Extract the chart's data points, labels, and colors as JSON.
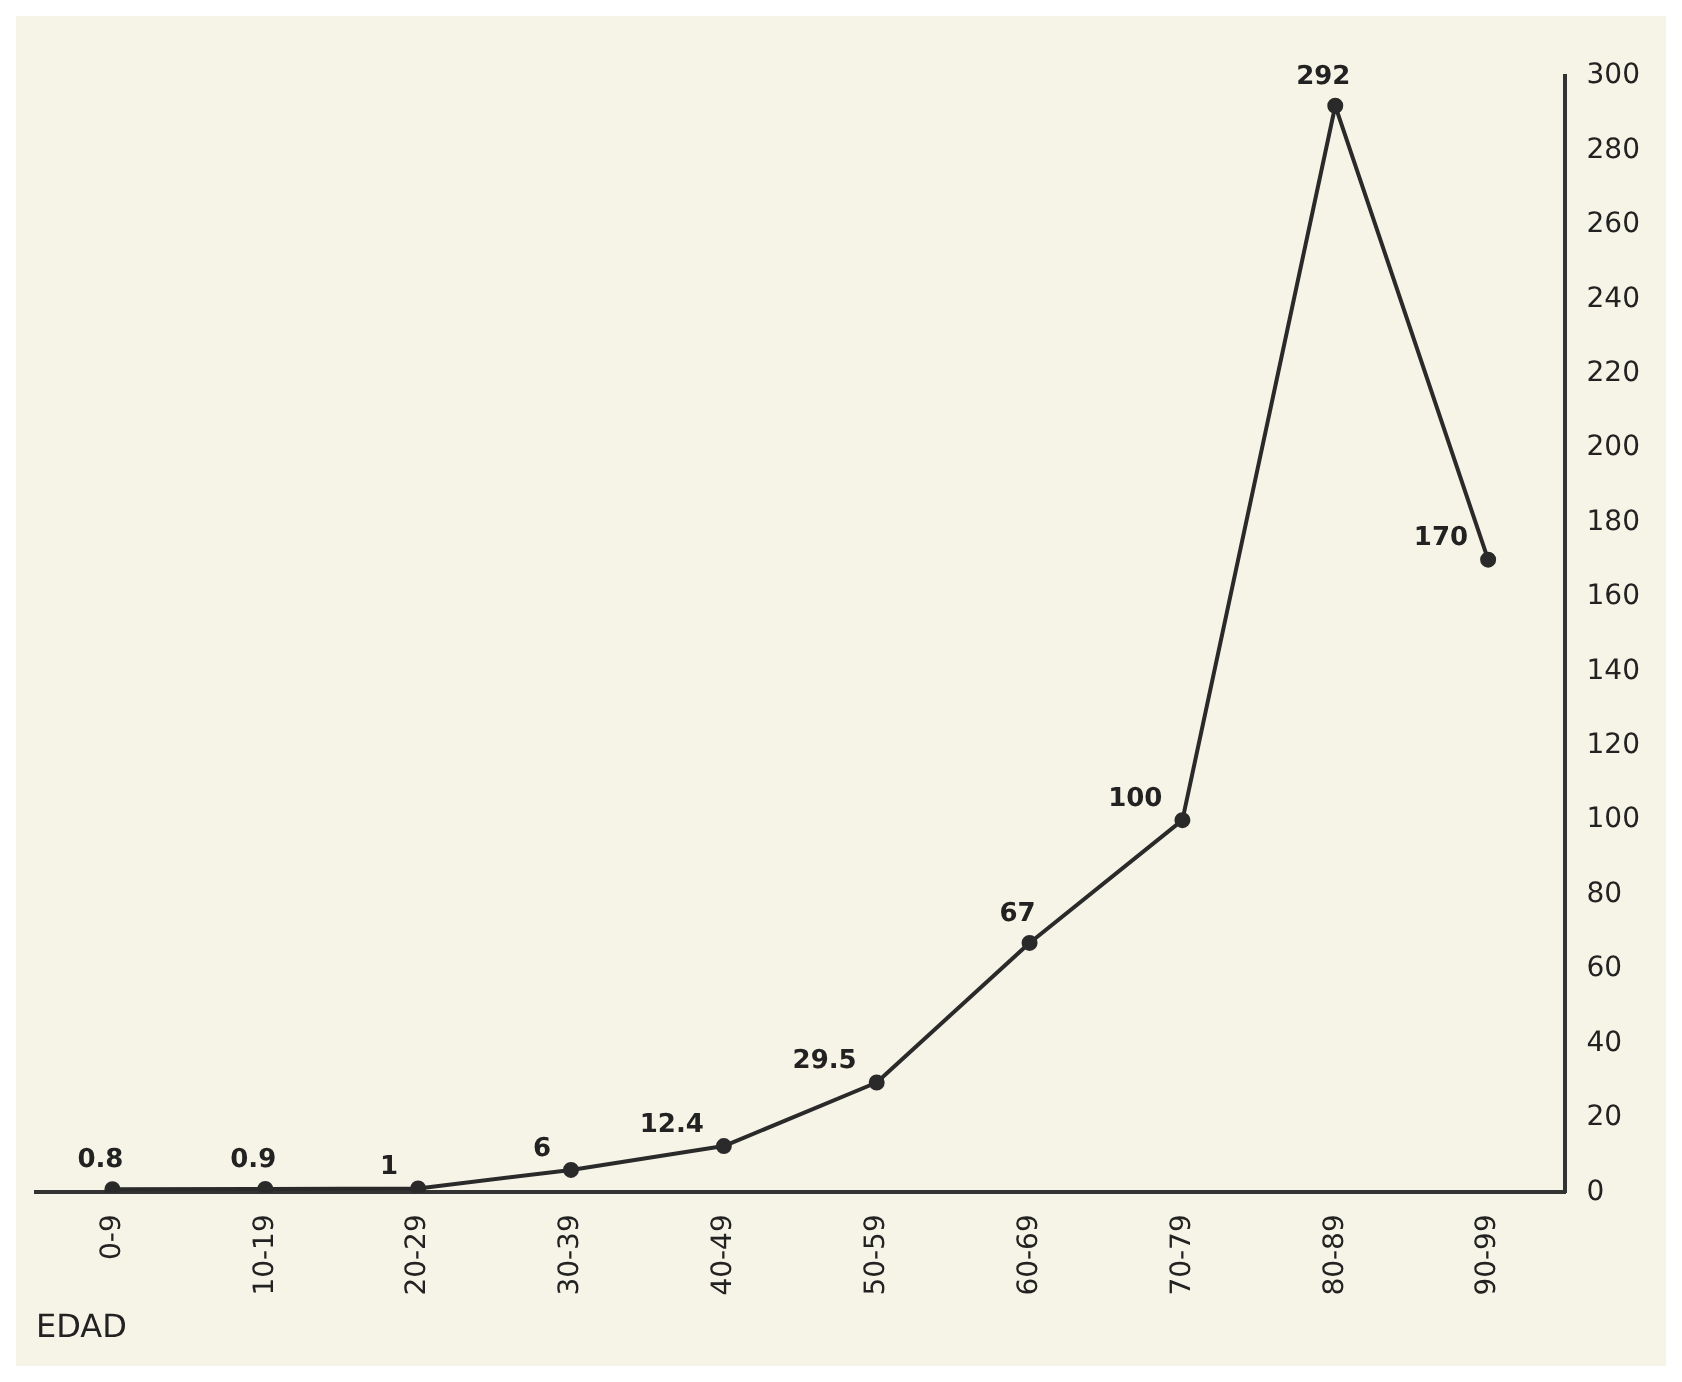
{
  "chart_data": {
    "type": "line",
    "xlabel": "EDAD",
    "categories": [
      "0-9",
      "10-19",
      "20-29",
      "30-39",
      "40-49",
      "50-59",
      "60-69",
      "70-79",
      "80-89",
      "90-99"
    ],
    "values": [
      0.8,
      0.9,
      1,
      6,
      12.4,
      29.5,
      67,
      100,
      292,
      170
    ],
    "color": "#2a2a2a",
    "marker": "circle",
    "data_labels": true,
    "grid": false,
    "legend": false,
    "ylim": [
      0,
      300
    ],
    "yticks": [
      0,
      20,
      40,
      60,
      80,
      100,
      120,
      140,
      160,
      180,
      200,
      220,
      240,
      260,
      280,
      300
    ]
  }
}
